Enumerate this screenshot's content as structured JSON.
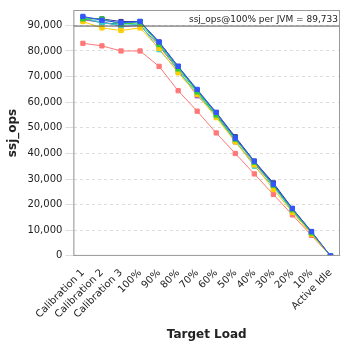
{
  "chart_data": {
    "type": "line",
    "x_label": "Target Load",
    "y_label": "ssj_ops",
    "categories": [
      "Calibration 1",
      "Calibration 2",
      "Calibration 3",
      "100%",
      "90%",
      "80%",
      "70%",
      "60%",
      "50%",
      "40%",
      "30%",
      "20%",
      "10%",
      "Active Idle"
    ],
    "ylim": [
      0,
      96000
    ],
    "yticks": [
      0,
      {
        "value": 10000,
        "label": "10,000"
      },
      {
        "value": 20000,
        "label": "20,000"
      },
      {
        "value": 30000,
        "label": "30,000"
      },
      {
        "value": 40000,
        "label": "40,000"
      },
      {
        "value": 50000,
        "label": "50,000"
      },
      {
        "value": 60000,
        "label": "60,000"
      },
      {
        "value": 70000,
        "label": "70,000"
      },
      {
        "value": 80000,
        "label": "80,000"
      },
      {
        "value": 90000,
        "label": "90,000"
      }
    ],
    "grid": true,
    "marker": "square",
    "reference_line": {
      "value": 89733,
      "label": "ssj_ops@100% per JVM = 89,733"
    },
    "series": [
      {
        "color": "#3355ff",
        "values": [
          93500,
          92000,
          91000,
          91500,
          83500,
          74000,
          65000,
          56000,
          46000,
          37000,
          28000,
          18500,
          9500,
          0
        ]
      },
      {
        "color": "#33cc33",
        "values": [
          92500,
          92500,
          90500,
          91000,
          82500,
          73000,
          64000,
          55000,
          45500,
          36500,
          27500,
          18000,
          9000,
          0
        ]
      },
      {
        "color": "#ffcc00",
        "values": [
          91500,
          89000,
          88000,
          89000,
          81000,
          71500,
          63000,
          54000,
          44500,
          35500,
          26000,
          17000,
          8500,
          0
        ]
      },
      {
        "color": "#33cccc",
        "values": [
          93000,
          91000,
          90000,
          90500,
          80500,
          72000,
          63500,
          54500,
          45000,
          35000,
          27000,
          17500,
          9000,
          0
        ]
      },
      {
        "color": "#9966cc",
        "values": [
          92000,
          91500,
          89500,
          90000,
          82000,
          72500,
          62500,
          55500,
          44500,
          36000,
          27500,
          17500,
          9000,
          0
        ]
      },
      {
        "color": "#009999",
        "values": [
          92500,
          91000,
          90500,
          91500,
          83000,
          73500,
          64500,
          55500,
          46000,
          36500,
          28000,
          18000,
          9000,
          0
        ]
      },
      {
        "color": "#333399",
        "values": [
          93000,
          92500,
          91500,
          91500,
          83500,
          74000,
          64500,
          56000,
          46500,
          37000,
          28500,
          18500,
          9500,
          0
        ]
      },
      {
        "color": "#ff7777",
        "values": [
          83000,
          82000,
          80000,
          80000,
          74000,
          64500,
          56500,
          48000,
          40000,
          32000,
          24000,
          16000,
          8000,
          0
        ]
      }
    ]
  }
}
